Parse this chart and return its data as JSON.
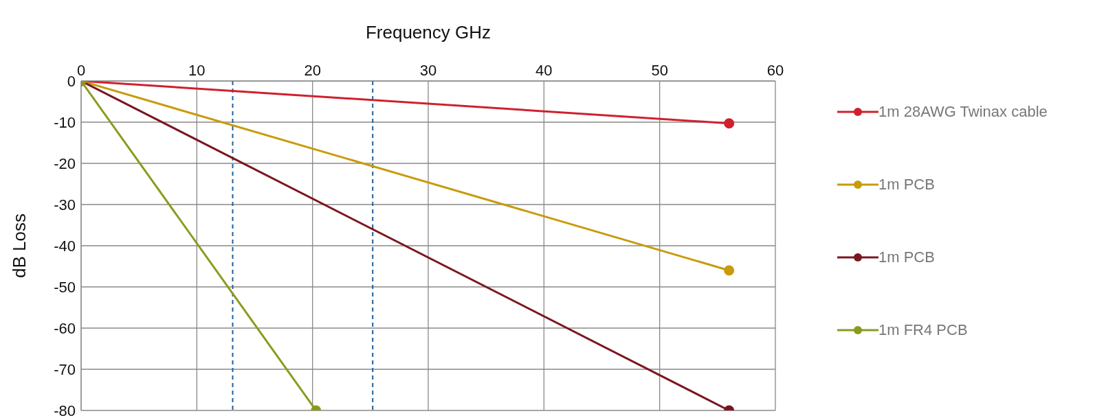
{
  "chart_data": {
    "type": "line",
    "xlabel": "Frequency GHz",
    "ylabel": "dB Loss",
    "xlim": [
      0,
      60
    ],
    "xticks": [
      0,
      10,
      20,
      30,
      40,
      50,
      60
    ],
    "ylim": [
      -80,
      0
    ],
    "yticks": [
      0,
      -10,
      -20,
      -30,
      -40,
      -50,
      -60,
      -70,
      -80
    ],
    "series": [
      {
        "name": "1m 28AWG Twinax cable",
        "color": "#d0202e",
        "x": [
          0,
          56
        ],
        "values": [
          0,
          -10.3
        ]
      },
      {
        "name": "1m PCB",
        "color": "#c89b0a",
        "x": [
          0,
          56
        ],
        "values": [
          0,
          -46
        ]
      },
      {
        "name": "1m PCB",
        "color": "#7b1620",
        "x": [
          0,
          56
        ],
        "values": [
          0,
          -80
        ]
      },
      {
        "name": "1m FR4 PCB",
        "color": "#8c9a1c",
        "x": [
          0,
          20.3
        ],
        "values": [
          0,
          -80
        ]
      }
    ],
    "ref_lines": [
      {
        "axis": "x",
        "value": 13.1,
        "color": "#1f5f9a",
        "line_style": "dashed"
      },
      {
        "axis": "x",
        "value": 25.2,
        "color": "#1f5f9a",
        "line_style": "dashed"
      }
    ],
    "grid": true,
    "legend": "right",
    "marker": "circle",
    "line_style": "solid"
  }
}
